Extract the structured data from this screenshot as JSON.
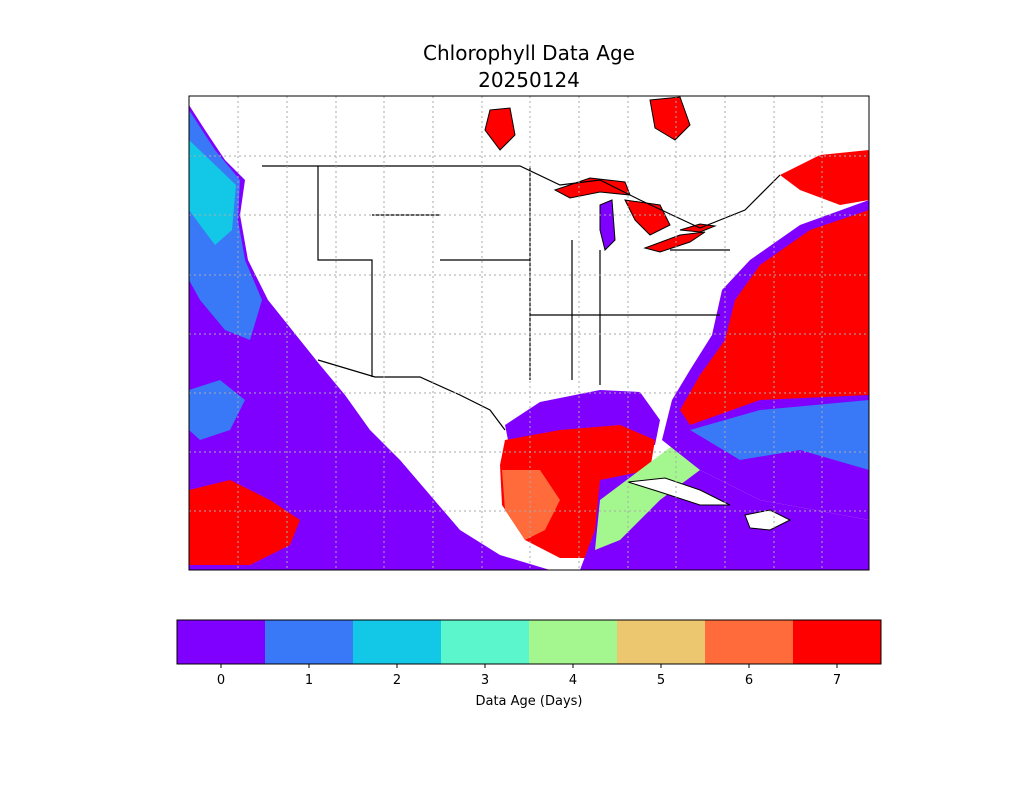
{
  "title": "Chlorophyll Data Age",
  "date": "20250124",
  "colorbar": {
    "label": "Data Age (Days)",
    "ticks": [
      0,
      1,
      2,
      3,
      4,
      5,
      6,
      7
    ],
    "colors": [
      "#8000ff",
      "#3978f6",
      "#12c8e6",
      "#5cf6cd",
      "#a4f68f",
      "#edc76f",
      "#ff6b3a",
      "#ff0000"
    ]
  }
}
